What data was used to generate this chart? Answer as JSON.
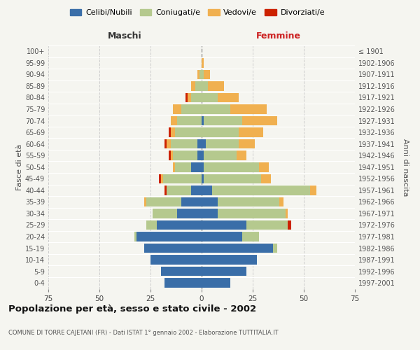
{
  "age_groups": [
    "100+",
    "95-99",
    "90-94",
    "85-89",
    "80-84",
    "75-79",
    "70-74",
    "65-69",
    "60-64",
    "55-59",
    "50-54",
    "45-49",
    "40-44",
    "35-39",
    "30-34",
    "25-29",
    "20-24",
    "15-19",
    "10-14",
    "5-9",
    "0-4"
  ],
  "birth_years": [
    "≤ 1901",
    "1902-1906",
    "1907-1911",
    "1912-1916",
    "1917-1921",
    "1922-1926",
    "1927-1931",
    "1932-1936",
    "1937-1941",
    "1942-1946",
    "1947-1951",
    "1952-1956",
    "1957-1961",
    "1962-1966",
    "1967-1971",
    "1972-1976",
    "1977-1981",
    "1982-1986",
    "1987-1991",
    "1992-1996",
    "1997-2001"
  ],
  "colors": {
    "celibi": "#3a6ea8",
    "coniugati": "#b5c98e",
    "vedovi": "#f0b050",
    "divorziati": "#cc2200"
  },
  "maschi": {
    "celibi": [
      0,
      0,
      0,
      0,
      0,
      0,
      0,
      0,
      2,
      2,
      5,
      0,
      5,
      10,
      12,
      22,
      32,
      28,
      25,
      20,
      18
    ],
    "coniugati": [
      0,
      0,
      1,
      3,
      5,
      10,
      12,
      13,
      13,
      12,
      8,
      19,
      12,
      17,
      12,
      5,
      1,
      0,
      0,
      0,
      0
    ],
    "vedovi": [
      0,
      0,
      1,
      2,
      2,
      4,
      3,
      2,
      2,
      1,
      1,
      1,
      0,
      1,
      0,
      0,
      0,
      0,
      0,
      0,
      0
    ],
    "divorziati": [
      0,
      0,
      0,
      0,
      1,
      0,
      0,
      1,
      1,
      1,
      0,
      1,
      1,
      0,
      0,
      0,
      0,
      0,
      0,
      0,
      0
    ]
  },
  "femmine": {
    "celibi": [
      0,
      0,
      0,
      0,
      0,
      0,
      1,
      0,
      2,
      1,
      1,
      1,
      5,
      8,
      8,
      22,
      20,
      35,
      27,
      22,
      14
    ],
    "coniugati": [
      0,
      0,
      1,
      3,
      8,
      14,
      19,
      18,
      16,
      16,
      27,
      28,
      48,
      30,
      33,
      20,
      8,
      2,
      0,
      0,
      0
    ],
    "vedovi": [
      0,
      1,
      3,
      8,
      10,
      18,
      17,
      12,
      8,
      5,
      5,
      5,
      3,
      2,
      1,
      0,
      0,
      0,
      0,
      0,
      0
    ],
    "divorziati": [
      0,
      0,
      0,
      0,
      0,
      0,
      0,
      0,
      0,
      0,
      0,
      0,
      0,
      0,
      0,
      2,
      0,
      0,
      0,
      0,
      0
    ]
  },
  "xlim": 75,
  "title": "Popolazione per età, sesso e stato civile - 2002",
  "subtitle": "COMUNE DI TORRE CAJETANI (FR) - Dati ISTAT 1° gennaio 2002 - Elaborazione TUTTITALIA.IT",
  "xlabel_left": "Maschi",
  "xlabel_right": "Femmine",
  "ylabel_left": "Fasce di età",
  "ylabel_right": "Anni di nascita",
  "legend_labels": [
    "Celibi/Nubili",
    "Coniugati/e",
    "Vedovi/e",
    "Divorziati/e"
  ],
  "bg_color": "#f5f5f0",
  "grid_color": "#cccccc"
}
